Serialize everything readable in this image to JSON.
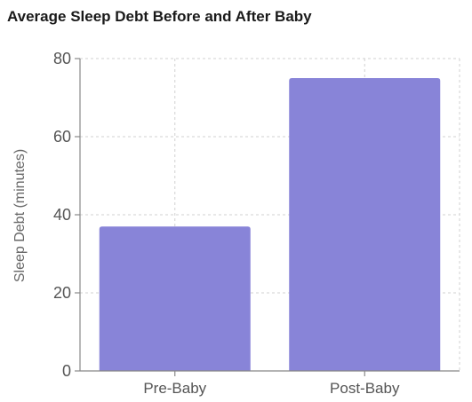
{
  "chart_data": {
    "type": "bar",
    "title": "Average Sleep Debt Before and After Baby",
    "categories": [
      "Pre-Baby",
      "Post-Baby"
    ],
    "values": [
      37,
      75
    ],
    "xlabel": "",
    "ylabel": "Sleep Debt (minutes)",
    "ylim": [
      0,
      80
    ],
    "yticks": [
      0,
      20,
      40,
      60,
      80
    ],
    "grid": true,
    "bar_color": "#8884d8",
    "axis_color": "#888888",
    "grid_color": "#d0d0d0"
  }
}
